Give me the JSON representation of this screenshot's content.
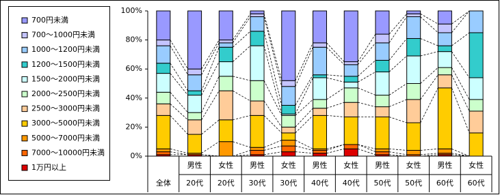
{
  "chart_data": {
    "type": "stacked_bar_100",
    "categories": [
      [
        "全体"
      ],
      [
        "男性",
        "20代"
      ],
      [
        "女性",
        "20代"
      ],
      [
        "男性",
        "30代"
      ],
      [
        "女性",
        "30代"
      ],
      [
        "男性",
        "40代"
      ],
      [
        "女性",
        "40代"
      ],
      [
        "男性",
        "50代"
      ],
      [
        "女性",
        "50代"
      ],
      [
        "男性",
        "60代"
      ],
      [
        "女性",
        "60代"
      ]
    ],
    "series": [
      {
        "name": "700円未満",
        "color": "#9999ff",
        "values": [
          20,
          40,
          20,
          2,
          48,
          22,
          35,
          16,
          2,
          9,
          0
        ]
      },
      {
        "name": "700～1000円未満",
        "color": "#c4c4ff",
        "values": [
          4,
          4,
          2,
          2,
          4,
          3,
          2,
          6,
          2,
          6,
          0
        ]
      },
      {
        "name": "1000～1200円未満",
        "color": "#99ccff",
        "values": [
          12,
          11,
          3,
          10,
          13,
          19,
          8,
          12,
          15,
          9,
          15
        ]
      },
      {
        "name": "1200～1500円未満",
        "color": "#33cccc",
        "values": [
          7,
          3,
          10,
          10,
          6,
          2,
          4,
          8,
          12,
          4,
          31
        ]
      },
      {
        "name": "1500～2000円未満",
        "color": "#ccffff",
        "values": [
          13,
          12,
          10,
          24,
          1,
          15,
          4,
          16,
          19,
          11,
          15
        ]
      },
      {
        "name": "2000～2500円未満",
        "color": "#ccffcc",
        "values": [
          8,
          5,
          10,
          14,
          8,
          6,
          10,
          8,
          11,
          5,
          8
        ]
      },
      {
        "name": "2500～3000円未満",
        "color": "#ffcc99",
        "values": [
          8,
          10,
          20,
          10,
          4,
          5,
          10,
          7,
          16,
          9,
          15
        ]
      },
      {
        "name": "3000～5000円未満",
        "color": "#ffcc00",
        "values": [
          23,
          13,
          15,
          22,
          5,
          23,
          19,
          22,
          19,
          42,
          16
        ]
      },
      {
        "name": "5000～7000円未満",
        "color": "#ff9900",
        "values": [
          2,
          1,
          10,
          2,
          4,
          1,
          0,
          2,
          3,
          3,
          0
        ]
      },
      {
        "name": "7000～10000円未満",
        "color": "#ff6600",
        "values": [
          2,
          0,
          0,
          3,
          4,
          2,
          3,
          2,
          1,
          1,
          0
        ]
      },
      {
        "name": "1万円以上",
        "color": "#dd0000",
        "values": [
          1,
          1,
          0,
          1,
          3,
          2,
          5,
          1,
          0,
          1,
          0
        ]
      }
    ],
    "ylim": [
      0,
      100
    ],
    "yticks": [
      {
        "value": 0,
        "label": "0%"
      },
      {
        "value": 20,
        "label": "20%"
      },
      {
        "value": 40,
        "label": "40%"
      },
      {
        "value": 60,
        "label": "60%"
      },
      {
        "value": 80,
        "label": "80%"
      },
      {
        "value": 100,
        "label": "100%"
      }
    ],
    "legend": "left"
  }
}
